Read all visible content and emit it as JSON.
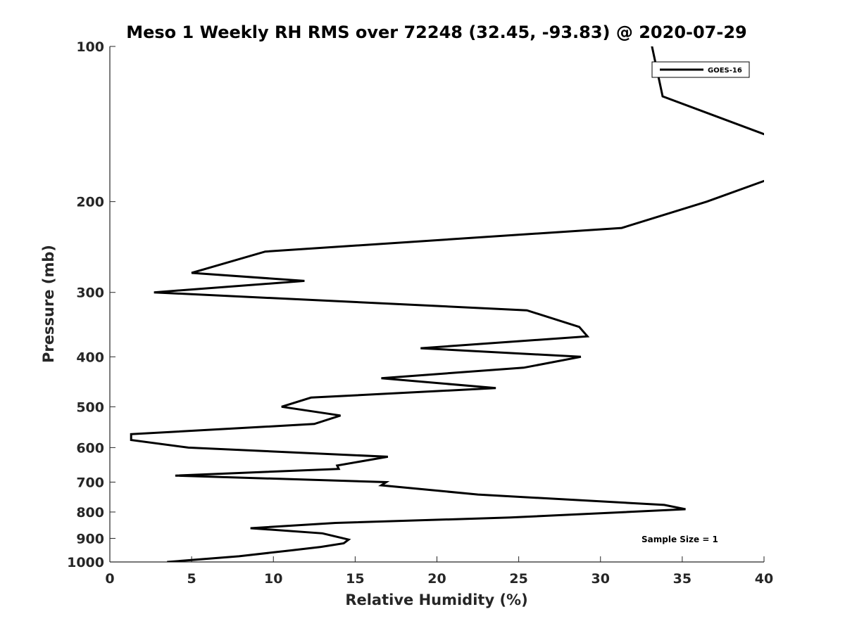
{
  "chart_data": {
    "type": "line",
    "title": "Meso 1 Weekly RH RMS over 72248 (32.45, -93.83) @ 2020-07-29",
    "xlabel": "Relative Humidity (%)",
    "ylabel": "Pressure (mb)",
    "xlim": [
      0,
      40
    ],
    "ylim": [
      100,
      1000
    ],
    "y_scale": "log",
    "y_reversed": true,
    "x_ticks": [
      0,
      5,
      10,
      15,
      20,
      25,
      30,
      35,
      40
    ],
    "x_tick_labels": [
      "0",
      "5",
      "10",
      "15",
      "20",
      "25",
      "30",
      "35",
      "40"
    ],
    "y_ticks": [
      100,
      200,
      300,
      400,
      500,
      600,
      700,
      800,
      900,
      1000
    ],
    "y_tick_labels": [
      "100",
      "200",
      "300",
      "400",
      "500",
      "600",
      "700",
      "800",
      "900",
      "1000"
    ],
    "grid": false,
    "legend": {
      "position": "top-right",
      "entries": [
        "GOES-16"
      ]
    },
    "annotation": "Sample Size = 1",
    "line_color": "#000000",
    "series": [
      {
        "name": "GOES-16",
        "x": [
          32.5,
          33.8,
          40.5,
          40.5,
          36.5,
          31.3,
          9.5,
          5.0,
          11.9,
          2.7,
          25.5,
          28.7,
          29.2,
          19.0,
          28.8,
          25.3,
          16.6,
          23.6,
          12.3,
          10.5,
          14.1,
          12.5,
          1.3,
          1.3,
          4.8,
          17.0,
          13.9,
          14.0,
          4.0,
          16.9,
          16.6,
          22.5,
          33.9,
          35.2,
          24.5,
          13.8,
          8.6,
          13.0,
          14.6,
          14.3,
          12.9,
          11.0,
          7.9,
          3.5
        ],
        "y": [
          80,
          125,
          150,
          180,
          200,
          225,
          250,
          275,
          285,
          300,
          325,
          350,
          365,
          385,
          400,
          420,
          440,
          460,
          480,
          500,
          520,
          540,
          565,
          580,
          600,
          625,
          650,
          660,
          680,
          700,
          710,
          740,
          775,
          790,
          820,
          840,
          860,
          880,
          905,
          920,
          935,
          950,
          975,
          1000
        ]
      }
    ]
  }
}
